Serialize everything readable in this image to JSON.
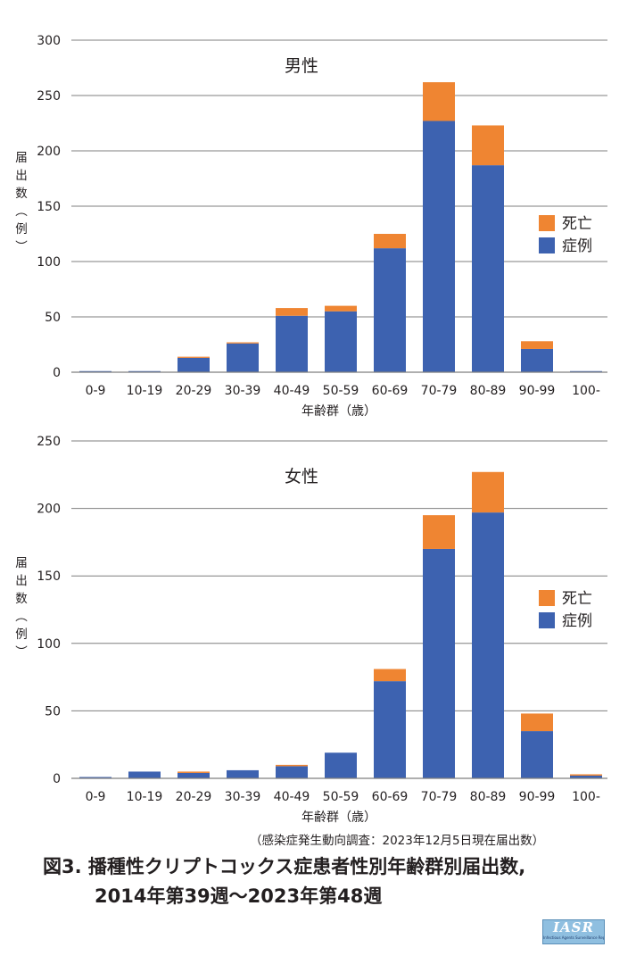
{
  "colors": {
    "cases": "#3d62b0",
    "deaths": "#ef8532",
    "grid": "#7f7f7f"
  },
  "chart_data": [
    {
      "type": "bar",
      "stacked": true,
      "title": "男性",
      "categories": [
        "0-9",
        "10-19",
        "20-29",
        "30-39",
        "40-49",
        "50-59",
        "60-69",
        "70-79",
        "80-89",
        "90-99",
        "100-"
      ],
      "series": [
        {
          "name": "症例",
          "values": [
            1,
            1,
            13,
            26,
            51,
            55,
            112,
            227,
            187,
            21,
            1
          ]
        },
        {
          "name": "死亡",
          "values": [
            0,
            0,
            1,
            1,
            7,
            5,
            13,
            35,
            36,
            7,
            0
          ]
        }
      ],
      "yticks": [
        0,
        50,
        100,
        150,
        200,
        250,
        300
      ],
      "ylim": [
        0,
        300
      ],
      "xlabel": "年齢群（歳）",
      "ylabel": "届出数（例）",
      "legend": [
        {
          "name": "死亡",
          "series": "死亡"
        },
        {
          "name": "症例",
          "series": "症例"
        }
      ],
      "legend_position": "right"
    },
    {
      "type": "bar",
      "stacked": true,
      "title": "女性",
      "categories": [
        "0-9",
        "10-19",
        "20-29",
        "30-39",
        "40-49",
        "50-59",
        "60-69",
        "70-79",
        "80-89",
        "90-99",
        "100-"
      ],
      "series": [
        {
          "name": "症例",
          "values": [
            1,
            5,
            4,
            6,
            9,
            19,
            72,
            170,
            197,
            35,
            2
          ]
        },
        {
          "name": "死亡",
          "values": [
            0,
            0,
            1,
            0,
            1,
            0,
            9,
            25,
            30,
            13,
            1
          ]
        }
      ],
      "yticks": [
        0,
        50,
        100,
        150,
        200,
        250
      ],
      "ylim": [
        0,
        250
      ],
      "xlabel": "年齢群（歳）",
      "ylabel": "届出数（例）",
      "legend": [
        {
          "name": "死亡",
          "series": "死亡"
        },
        {
          "name": "症例",
          "series": "症例"
        }
      ],
      "legend_position": "right"
    }
  ],
  "source_note": "（感染症発生動向調査：2023年12月5日現在届出数）",
  "caption": {
    "line1": "図3. 播種性クリプトコックス症患者性別年齢群別届出数,",
    "line2": "2014年第39週〜2023年第48週"
  },
  "logo": {
    "text": "IASR",
    "subtext": "Infectious Agents Surveillance Report"
  }
}
